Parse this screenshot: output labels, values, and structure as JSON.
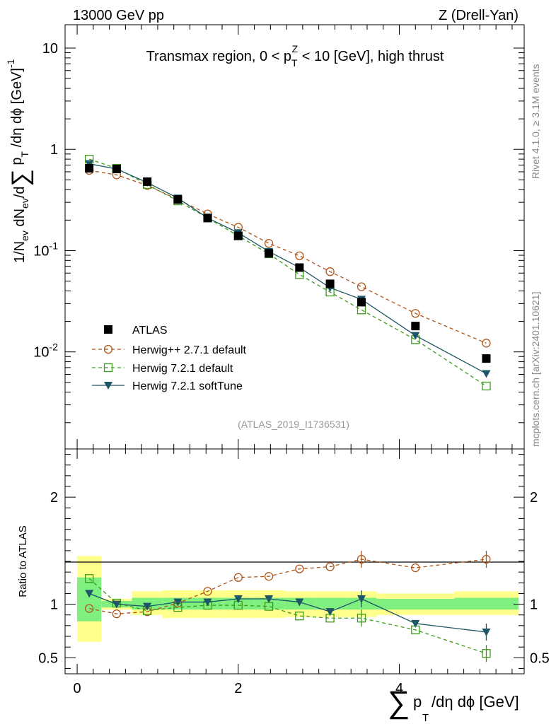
{
  "header": {
    "left": "13000 GeV pp",
    "right": "Z (Drell-Yan)"
  },
  "side_labels": {
    "top": "Rivet 4.1.0, ≥ 3.1M events",
    "bottom": "mcplots.cern.ch [arXiv:2401.10621]"
  },
  "colors": {
    "data": "#000000",
    "herwigpp": "#b0551a",
    "herwig721_default": "#3d9a1b",
    "herwig721_soft": "#1d5666",
    "band_inner": "#7ff07f",
    "band_outer": "#ffff8c"
  },
  "chart_data": [
    {
      "type": "scatter",
      "yscale": "log",
      "title": "Transmax region, 0 < p_T^Z < 10 [GeV], high thrust",
      "ylabel": "1/N_ev dN_ev/d∑ p_T /dη dϕ  [GeV]^-1",
      "xlim": [
        -0.15,
        5.55
      ],
      "ylim": [
        0.0011,
        17
      ],
      "ytick_labels": [
        "10",
        "1",
        "10^-1",
        "10^-2"
      ],
      "analysis_label": "(ATLAS_2019_I1736531)",
      "x": [
        0.15,
        0.49,
        0.87,
        1.25,
        1.62,
        2.0,
        2.38,
        2.76,
        3.14,
        3.53,
        4.2,
        5.08
      ],
      "legend": [
        "ATLAS",
        "Herwig++ 2.7.1 default",
        "Herwig 7.2.1 default",
        "Herwig 7.2.1 softTune"
      ],
      "series": [
        {
          "name": "ATLAS",
          "values": [
            0.65,
            0.64,
            0.48,
            0.32,
            0.21,
            0.14,
            0.094,
            0.068,
            0.047,
            0.031,
            0.018,
            0.0086
          ]
        },
        {
          "name": "Herwig++ 2.7.1 default",
          "values": [
            0.62,
            0.56,
            0.44,
            0.32,
            0.23,
            0.17,
            0.118,
            0.089,
            0.062,
            0.044,
            0.024,
            0.0122
          ]
        },
        {
          "name": "Herwig 7.2.1 default",
          "values": [
            0.8,
            0.65,
            0.45,
            0.31,
            0.21,
            0.14,
            0.093,
            0.058,
            0.039,
            0.026,
            0.0132,
            0.0046
          ]
        },
        {
          "name": "Herwig 7.2.1 softTune",
          "values": [
            0.72,
            0.64,
            0.47,
            0.33,
            0.21,
            0.15,
            0.098,
            0.068,
            0.043,
            0.033,
            0.0145,
            0.0061
          ]
        }
      ]
    },
    {
      "type": "line",
      "ylabel": "Ratio to ATLAS",
      "xlabel": "∑ p_T /dη dϕ [GeV]",
      "xlim": [
        -0.15,
        5.55
      ],
      "ylim": [
        0.35,
        2.45
      ],
      "xtick_labels": [
        "0",
        "2",
        "4"
      ],
      "ytick_labels": [
        "0.5",
        "1",
        "2"
      ],
      "bins": [
        [
          0.0,
          0.3
        ],
        [
          0.3,
          0.68
        ],
        [
          0.68,
          1.06
        ],
        [
          1.06,
          1.44
        ],
        [
          1.44,
          1.82
        ],
        [
          1.82,
          2.2
        ],
        [
          2.2,
          2.58
        ],
        [
          2.58,
          2.96
        ],
        [
          2.96,
          3.34
        ],
        [
          3.34,
          3.72
        ],
        [
          3.72,
          4.68
        ],
        [
          4.68,
          5.48
        ]
      ],
      "band_inner": [
        [
          0.84,
          1.25
        ],
        [
          0.97,
          1.03
        ],
        [
          0.95,
          1.06
        ],
        [
          0.95,
          1.06
        ],
        [
          0.95,
          1.06
        ],
        [
          0.95,
          1.06
        ],
        [
          0.95,
          1.06
        ],
        [
          0.95,
          1.06
        ],
        [
          0.95,
          1.06
        ],
        [
          0.95,
          1.06
        ],
        [
          0.95,
          1.05
        ],
        [
          0.95,
          1.06
        ]
      ],
      "band_outer": [
        [
          0.65,
          1.45
        ],
        [
          0.95,
          1.05
        ],
        [
          0.9,
          1.12
        ],
        [
          0.87,
          1.13
        ],
        [
          0.87,
          1.13
        ],
        [
          0.87,
          1.13
        ],
        [
          0.87,
          1.13
        ],
        [
          0.88,
          1.12
        ],
        [
          0.88,
          1.12
        ],
        [
          0.88,
          1.12
        ],
        [
          0.9,
          1.1
        ],
        [
          0.9,
          1.12
        ]
      ],
      "series": [
        {
          "name": "Herwig++ 2.7.1 default",
          "values": [
            0.96,
            0.91,
            0.93,
            1.01,
            1.12,
            1.25,
            1.26,
            1.33,
            1.35,
            1.42,
            1.34,
            1.42
          ]
        },
        {
          "name": "Herwig 7.2.1 default",
          "values": [
            1.24,
            1.01,
            0.94,
            0.97,
            0.99,
            0.99,
            0.98,
            0.89,
            0.87,
            0.87,
            0.76,
            0.54
          ]
        },
        {
          "name": "Herwig 7.2.1 softTune",
          "values": [
            1.1,
            1.0,
            0.98,
            1.02,
            1.02,
            1.05,
            1.05,
            1.02,
            0.93,
            1.05,
            0.82,
            0.74
          ]
        }
      ]
    }
  ]
}
